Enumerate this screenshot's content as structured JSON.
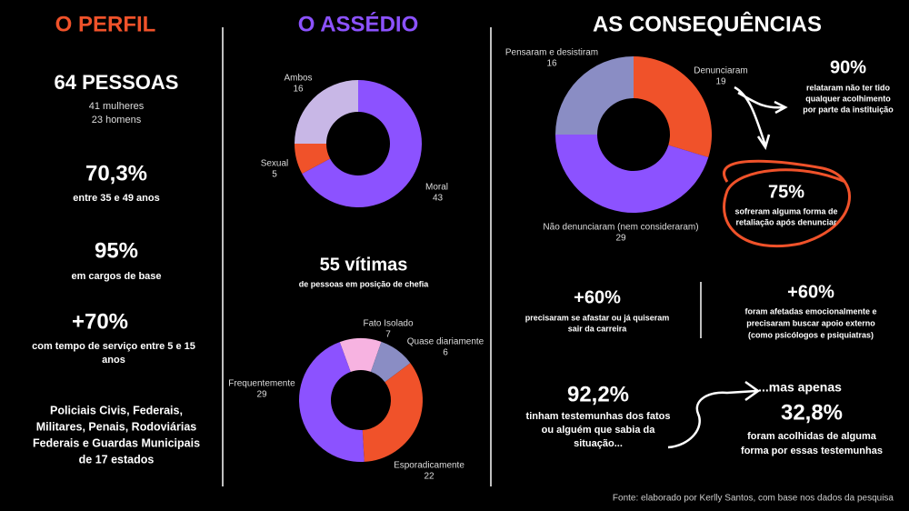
{
  "chart_data": [
    {
      "type": "donut",
      "categories": [
        "Moral",
        "Sexual",
        "Ambos"
      ],
      "values": [
        43,
        5,
        16
      ],
      "colors": [
        "#8c52ff",
        "#f0522a",
        "#c8b7e6"
      ]
    },
    {
      "type": "donut",
      "categories": [
        "Fato Isolado",
        "Quase diariamente",
        "Esporadicamente",
        "Frequentemente"
      ],
      "values": [
        7,
        6,
        22,
        29
      ],
      "colors": [
        "#f7b3e1",
        "#8a8dc4",
        "#f0522a",
        "#8c52ff"
      ]
    },
    {
      "type": "donut",
      "categories": [
        "Denunciaram",
        "Não denunciaram (nem consideraram)",
        "Pensaram e desistiram"
      ],
      "values": [
        19,
        29,
        16
      ],
      "colors": [
        "#f0522a",
        "#8c52ff",
        "#8a8dc4"
      ]
    }
  ],
  "perfil": {
    "title": "O PERFIL",
    "stats": [
      {
        "headline": "64 PESSOAS",
        "lines": [
          "41 mulheres",
          "23 homens"
        ]
      },
      {
        "headline": "70,3%",
        "lines": [
          "entre 35 e 49 anos"
        ]
      },
      {
        "headline": "95%",
        "lines": [
          "em cargos de base"
        ]
      },
      {
        "headline": "+70%",
        "lines": [
          "com tempo de serviço entre 5 e 15",
          "anos"
        ]
      }
    ],
    "footer_lines": [
      "Policiais Civis, Federais,",
      "Militares, Penais, Rodoviárias",
      "Federais e Guardas Municipais",
      "de 17 estados"
    ]
  },
  "assedio": {
    "title": "O ASSÉDIO",
    "headline": "55 vítimas",
    "subtitle": "de pessoas em posição de chefia"
  },
  "consequencias": {
    "title": "AS CONSEQUÊNCIAS",
    "stats": [
      {
        "headline": "90%",
        "lines": [
          "relataram não ter tido",
          "qualquer acolhimento",
          "por parte da instituição"
        ]
      },
      {
        "headline": "75%",
        "lines": [
          "sofreram alguma forma de",
          "retaliação após denunciar"
        ]
      },
      {
        "headline": "+60%",
        "lines": [
          "precisaram se afastar ou já quiseram",
          "sair da carreira"
        ]
      },
      {
        "headline": "+60%",
        "lines": [
          "foram afetadas emocionalmente e",
          "precisaram buscar apoio externo",
          "(como psicólogos e psiquiatras)"
        ]
      },
      {
        "headline": "92,2%",
        "lines": [
          "tinham testemunhas dos fatos",
          "ou alguém que sabia da",
          "situação..."
        ]
      },
      {
        "lead": "...mas apenas",
        "headline": "32,8%",
        "lines": [
          "foram acolhidas de alguma",
          "forma por essas testemunhas"
        ]
      }
    ]
  },
  "source": "Fonte: elaborado por Kerlly Santos, com base nos dados da pesquisa"
}
